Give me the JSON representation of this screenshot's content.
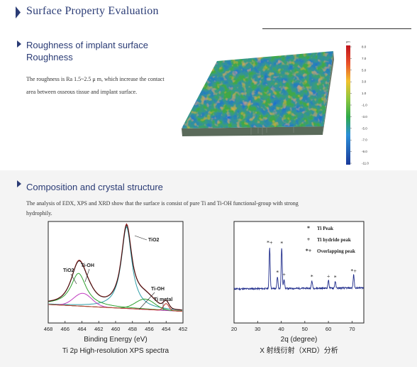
{
  "header": {
    "title": "Surface Property Evaluation"
  },
  "roughness": {
    "title_line1": "Roughness of implant surface",
    "title_line2": "Roughness",
    "description": "The roughness is Ra 1.5~2.5 μ m, which increase the contact area between osseous tissue and implant surface.",
    "colorbar": {
      "unit": "μm",
      "ticks": [
        "8.0",
        "7.0",
        "5.0",
        "3.0",
        "1.0",
        "-1.0",
        "-3.0",
        "-5.0",
        "-7.0",
        "-9.0",
        "-11.0"
      ]
    }
  },
  "composition": {
    "title": "Composition and crystal structure",
    "description": "The analysis of EDX, XPS and XRD show that the surface is consist of pure Ti and Ti-OH functional-group with strong hydrophily."
  },
  "chart_data": [
    {
      "type": "line",
      "title": "Ti 2p High-resolution XPS spectra",
      "xlabel": "Binding Energy (eV)",
      "ylabel": "",
      "xlim": [
        468,
        452
      ],
      "x_ticks": [
        468,
        466,
        464,
        462,
        460,
        458,
        456,
        454,
        452
      ],
      "peaks": [
        {
          "label": "TiO2",
          "x": 458.7,
          "height": 0.95
        },
        {
          "label": "TiO2",
          "x": 464.4,
          "height": 0.38
        },
        {
          "label": "Ti-OH",
          "x": 463.9,
          "height": 0.15
        },
        {
          "label": "Ti-OH",
          "x": 456.5,
          "height": 0.12
        },
        {
          "label": "Ti metal",
          "x": 454.0,
          "height": 0.08
        }
      ],
      "annotations": [
        "TiO2",
        "Ti-OH",
        "TiO2",
        "Ti-OH",
        "Ti metal"
      ]
    },
    {
      "type": "line",
      "title": "X 射线衍射（XRD）分析",
      "xlabel": "2q (degree)",
      "ylabel": "",
      "xlim": [
        20,
        75
      ],
      "x_ticks": [
        20,
        30,
        40,
        50,
        60,
        70
      ],
      "peaks": [
        {
          "x": 35.1,
          "height": 0.78,
          "marker": "*+"
        },
        {
          "x": 38.4,
          "height": 0.22,
          "marker": "*"
        },
        {
          "x": 40.2,
          "height": 0.77,
          "marker": "*"
        },
        {
          "x": 41.2,
          "height": 0.18,
          "marker": "+"
        },
        {
          "x": 53.0,
          "height": 0.14,
          "marker": "*"
        },
        {
          "x": 60.0,
          "height": 0.15,
          "marker": "+"
        },
        {
          "x": 62.9,
          "height": 0.13,
          "marker": "*"
        },
        {
          "x": 70.7,
          "height": 0.25,
          "marker": "*+"
        }
      ],
      "legend": [
        {
          "marker": "*",
          "label": "Ti Peak"
        },
        {
          "marker": "+",
          "label": "Ti hydride peak"
        },
        {
          "marker": "*+",
          "label": "Overlapping peak"
        }
      ],
      "legend_position": "top-right"
    }
  ],
  "colors": {
    "accent": "#2a3b75",
    "xps_envelope": "#8b1c1c",
    "xps_tio2": "#2f9ea8",
    "xps_tioh": "#2fa12f",
    "xps_timetal": "#c0392b",
    "xps_tioh2": "#c03cc0",
    "xrd_line": "#1d2a8a"
  }
}
